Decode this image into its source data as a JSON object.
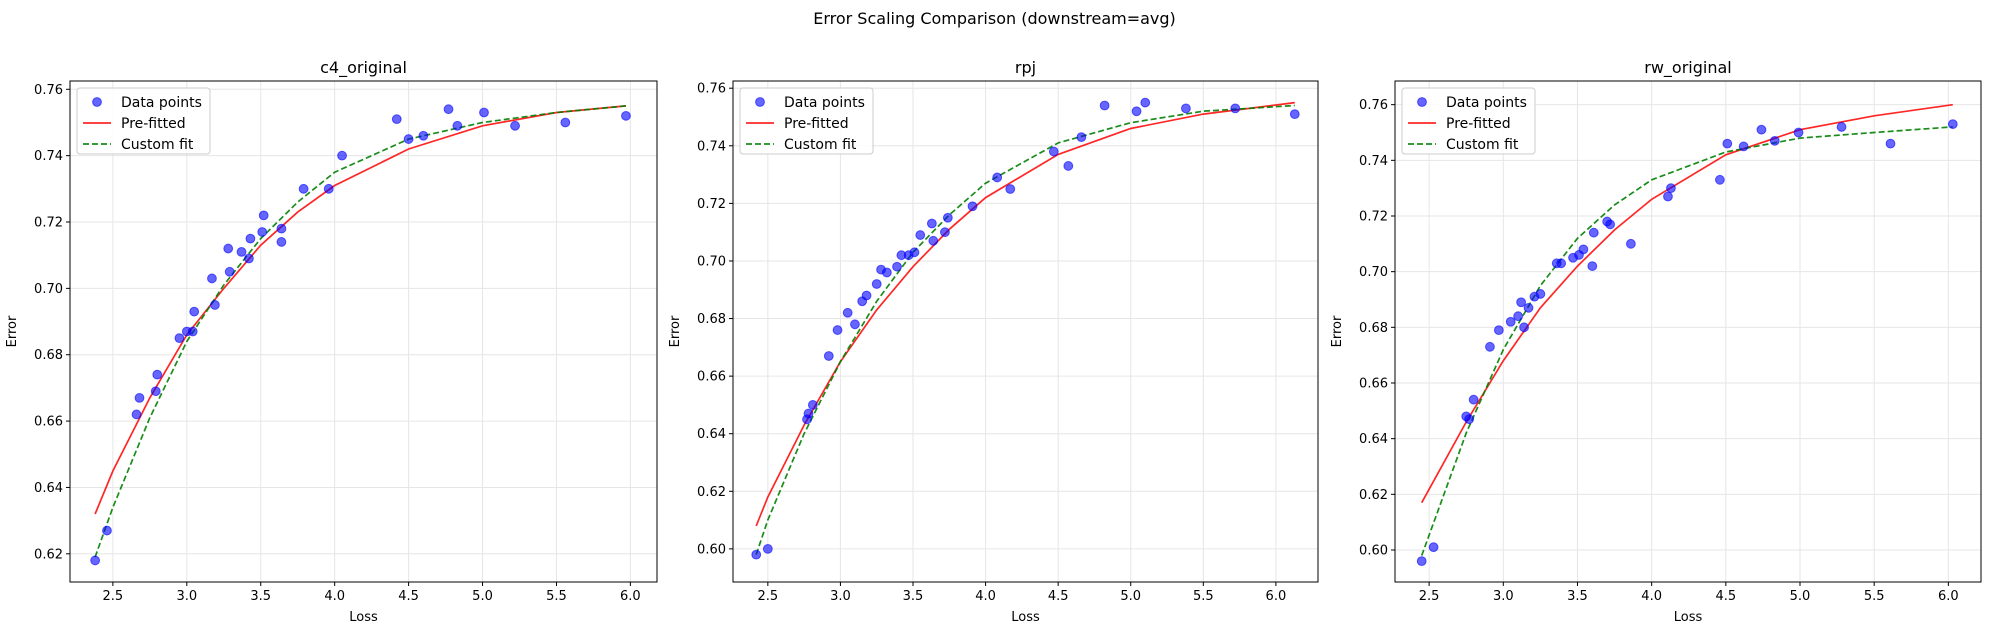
{
  "figure": {
    "title": "Error Scaling Comparison (downstream=avg)"
  },
  "legend_labels": {
    "points": "Data points",
    "pre": "Pre-fitted",
    "custom": "Custom fit"
  },
  "colors": {
    "points": "#0000ff",
    "pre": "#ff0000",
    "custom": "#008000",
    "grid": "#e6e6e6"
  },
  "chart_data": [
    {
      "type": "scatter",
      "title": "c4_original",
      "xlabel": "Loss",
      "ylabel": "Error",
      "xlim": [
        2.21,
        6.18
      ],
      "ylim": [
        0.6115,
        0.7625
      ],
      "xticks": [
        "2.5",
        "3.0",
        "3.5",
        "4.0",
        "4.5",
        "5.0",
        "5.5",
        "6.0"
      ],
      "yticks": [
        "0.62",
        "0.64",
        "0.66",
        "0.68",
        "0.70",
        "0.72",
        "0.74",
        "0.76"
      ],
      "grid": true,
      "legend_position": "upper left",
      "points": [
        [
          2.38,
          0.618
        ],
        [
          2.46,
          0.627
        ],
        [
          2.66,
          0.662
        ],
        [
          2.68,
          0.667
        ],
        [
          2.79,
          0.669
        ],
        [
          2.8,
          0.674
        ],
        [
          2.95,
          0.685
        ],
        [
          3.0,
          0.687
        ],
        [
          3.04,
          0.687
        ],
        [
          3.05,
          0.693
        ],
        [
          3.17,
          0.703
        ],
        [
          3.19,
          0.695
        ],
        [
          3.28,
          0.712
        ],
        [
          3.29,
          0.705
        ],
        [
          3.37,
          0.711
        ],
        [
          3.42,
          0.709
        ],
        [
          3.43,
          0.715
        ],
        [
          3.51,
          0.717
        ],
        [
          3.52,
          0.722
        ],
        [
          3.64,
          0.718
        ],
        [
          3.64,
          0.714
        ],
        [
          3.79,
          0.73
        ],
        [
          3.96,
          0.73
        ],
        [
          4.05,
          0.74
        ],
        [
          4.42,
          0.751
        ],
        [
          4.5,
          0.745
        ],
        [
          4.6,
          0.746
        ],
        [
          4.77,
          0.754
        ],
        [
          4.83,
          0.749
        ],
        [
          5.01,
          0.753
        ],
        [
          5.22,
          0.749
        ],
        [
          5.56,
          0.75
        ],
        [
          5.97,
          0.752
        ]
      ],
      "series": [
        {
          "name": "Pre-fitted",
          "style": "solid",
          "x": [
            2.38,
            2.5,
            2.75,
            3.0,
            3.25,
            3.5,
            3.75,
            4.0,
            4.5,
            5.0,
            5.5,
            5.97
          ],
          "y": [
            0.632,
            0.645,
            0.667,
            0.686,
            0.7,
            0.713,
            0.723,
            0.731,
            0.742,
            0.749,
            0.753,
            0.755
          ]
        },
        {
          "name": "Custom fit",
          "style": "dashed",
          "x": [
            2.38,
            2.5,
            2.75,
            3.0,
            3.25,
            3.5,
            3.75,
            4.0,
            4.5,
            5.0,
            5.5,
            5.97
          ],
          "y": [
            0.619,
            0.634,
            0.661,
            0.684,
            0.701,
            0.715,
            0.726,
            0.735,
            0.745,
            0.75,
            0.753,
            0.755
          ]
        }
      ]
    },
    {
      "type": "scatter",
      "title": "rpj",
      "xlabel": "Loss",
      "ylabel": "Error",
      "xlim": [
        2.26,
        6.29
      ],
      "ylim": [
        0.5885,
        0.7625
      ],
      "xticks": [
        "2.5",
        "3.0",
        "3.5",
        "4.0",
        "4.5",
        "5.0",
        "5.5",
        "6.0"
      ],
      "yticks": [
        "0.60",
        "0.62",
        "0.64",
        "0.66",
        "0.68",
        "0.70",
        "0.72",
        "0.74",
        "0.76"
      ],
      "grid": true,
      "legend_position": "upper left",
      "points": [
        [
          2.42,
          0.598
        ],
        [
          2.5,
          0.6
        ],
        [
          2.77,
          0.645
        ],
        [
          2.78,
          0.647
        ],
        [
          2.81,
          0.65
        ],
        [
          2.92,
          0.667
        ],
        [
          2.98,
          0.676
        ],
        [
          3.05,
          0.682
        ],
        [
          3.1,
          0.678
        ],
        [
          3.15,
          0.686
        ],
        [
          3.18,
          0.688
        ],
        [
          3.25,
          0.692
        ],
        [
          3.28,
          0.697
        ],
        [
          3.32,
          0.696
        ],
        [
          3.39,
          0.698
        ],
        [
          3.42,
          0.702
        ],
        [
          3.47,
          0.702
        ],
        [
          3.51,
          0.703
        ],
        [
          3.55,
          0.709
        ],
        [
          3.63,
          0.713
        ],
        [
          3.64,
          0.707
        ],
        [
          3.72,
          0.71
        ],
        [
          3.74,
          0.715
        ],
        [
          3.91,
          0.719
        ],
        [
          4.08,
          0.729
        ],
        [
          4.17,
          0.725
        ],
        [
          4.47,
          0.738
        ],
        [
          4.57,
          0.733
        ],
        [
          4.66,
          0.743
        ],
        [
          4.82,
          0.754
        ],
        [
          5.04,
          0.752
        ],
        [
          5.1,
          0.755
        ],
        [
          5.38,
          0.753
        ],
        [
          5.72,
          0.753
        ],
        [
          6.13,
          0.751
        ]
      ],
      "series": [
        {
          "name": "Pre-fitted",
          "style": "solid",
          "x": [
            2.42,
            2.5,
            2.75,
            3.0,
            3.25,
            3.5,
            3.75,
            4.0,
            4.5,
            5.0,
            5.5,
            6.13
          ],
          "y": [
            0.608,
            0.618,
            0.643,
            0.665,
            0.683,
            0.698,
            0.711,
            0.722,
            0.737,
            0.746,
            0.751,
            0.755
          ]
        },
        {
          "name": "Custom fit",
          "style": "dashed",
          "x": [
            2.42,
            2.5,
            2.75,
            3.0,
            3.25,
            3.5,
            3.75,
            4.0,
            4.5,
            5.0,
            5.5,
            6.13
          ],
          "y": [
            0.598,
            0.61,
            0.64,
            0.665,
            0.686,
            0.703,
            0.716,
            0.727,
            0.741,
            0.748,
            0.752,
            0.754
          ]
        }
      ]
    },
    {
      "type": "scatter",
      "title": "rw_original",
      "xlabel": "Loss",
      "ylabel": "Error",
      "xlim": [
        2.27,
        6.22
      ],
      "ylim": [
        0.5885,
        0.7685
      ],
      "xticks": [
        "2.5",
        "3.0",
        "3.5",
        "4.0",
        "4.5",
        "5.0",
        "5.5",
        "6.0"
      ],
      "yticks": [
        "0.60",
        "0.62",
        "0.64",
        "0.66",
        "0.68",
        "0.70",
        "0.72",
        "0.74",
        "0.76"
      ],
      "grid": true,
      "legend_position": "upper left",
      "points": [
        [
          2.45,
          0.596
        ],
        [
          2.53,
          0.601
        ],
        [
          2.75,
          0.648
        ],
        [
          2.77,
          0.647
        ],
        [
          2.8,
          0.654
        ],
        [
          2.91,
          0.673
        ],
        [
          2.97,
          0.679
        ],
        [
          3.05,
          0.682
        ],
        [
          3.1,
          0.684
        ],
        [
          3.12,
          0.689
        ],
        [
          3.14,
          0.68
        ],
        [
          3.17,
          0.687
        ],
        [
          3.21,
          0.691
        ],
        [
          3.25,
          0.692
        ],
        [
          3.36,
          0.703
        ],
        [
          3.39,
          0.703
        ],
        [
          3.47,
          0.705
        ],
        [
          3.51,
          0.706
        ],
        [
          3.54,
          0.708
        ],
        [
          3.6,
          0.702
        ],
        [
          3.61,
          0.714
        ],
        [
          3.7,
          0.718
        ],
        [
          3.72,
          0.717
        ],
        [
          3.86,
          0.71
        ],
        [
          4.11,
          0.727
        ],
        [
          4.13,
          0.73
        ],
        [
          4.46,
          0.733
        ],
        [
          4.51,
          0.746
        ],
        [
          4.62,
          0.745
        ],
        [
          4.74,
          0.751
        ],
        [
          4.83,
          0.747
        ],
        [
          4.99,
          0.75
        ],
        [
          5.28,
          0.752
        ],
        [
          5.61,
          0.746
        ],
        [
          6.03,
          0.753
        ]
      ],
      "series": [
        {
          "name": "Pre-fitted",
          "style": "solid",
          "x": [
            2.45,
            2.75,
            3.0,
            3.25,
            3.5,
            3.75,
            4.0,
            4.5,
            5.0,
            5.5,
            6.03
          ],
          "y": [
            0.617,
            0.646,
            0.668,
            0.687,
            0.702,
            0.715,
            0.726,
            0.742,
            0.751,
            0.756,
            0.76
          ]
        },
        {
          "name": "Custom fit",
          "style": "dashed",
          "x": [
            2.45,
            2.75,
            3.0,
            3.25,
            3.5,
            3.75,
            4.0,
            4.5,
            5.0,
            5.5,
            6.03
          ],
          "y": [
            0.598,
            0.642,
            0.672,
            0.695,
            0.712,
            0.724,
            0.733,
            0.743,
            0.748,
            0.75,
            0.752
          ]
        }
      ]
    }
  ]
}
